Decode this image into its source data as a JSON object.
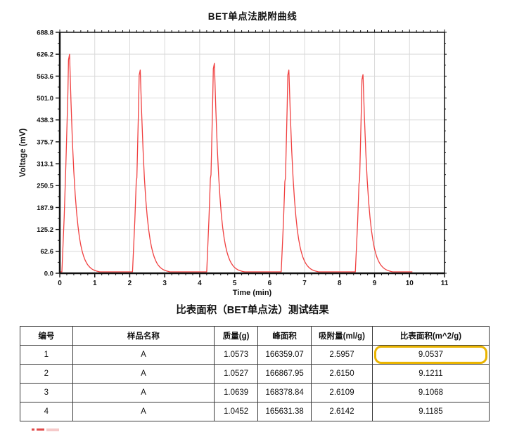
{
  "figure": {
    "title": "BET单点法脱附曲线"
  },
  "chart_data": {
    "type": "line",
    "title": "BET单点法脱附曲线",
    "xlabel": "Time (min)",
    "ylabel": "Voltage (mV)",
    "xlim": [
      0,
      11
    ],
    "ylim": [
      0,
      688.8
    ],
    "grid": true,
    "legend": "none",
    "line_color": "#f04040",
    "grid_color": "#d9d9d9",
    "axis_color": "#111111",
    "x_tick_labels": [
      "0",
      "1",
      "2",
      "3",
      "4",
      "5",
      "6",
      "7",
      "8",
      "9",
      "10",
      "11"
    ],
    "y_tick_labels": [
      "0.0",
      "62.6",
      "125.2",
      "187.9",
      "250.5",
      "313.1",
      "375.7",
      "438.3",
      "501.0",
      "563.6",
      "626.2",
      "688.8"
    ],
    "baseline_mV": 4,
    "trace_end_min": 10.08,
    "peaks": [
      {
        "rise_start": 0.06,
        "peak_time": 0.28,
        "peak_mV": 626,
        "shoulder": false
      },
      {
        "rise_start": 2.08,
        "peak_time": 2.3,
        "peak_mV": 581,
        "shoulder": true
      },
      {
        "rise_start": 4.2,
        "peak_time": 4.42,
        "peak_mV": 600,
        "shoulder": true
      },
      {
        "rise_start": 6.33,
        "peak_time": 6.55,
        "peak_mV": 581,
        "shoulder": true
      },
      {
        "rise_start": 8.45,
        "peak_time": 8.67,
        "peak_mV": 568,
        "shoulder": true
      }
    ]
  },
  "table_section": {
    "title": "比表面积（BET单点法）测试结果",
    "columns": [
      "编号",
      "样品名称",
      "质量(g)",
      "峰面积",
      "吸附量(ml/g)",
      "比表面积(m^2/g)"
    ],
    "col_widths_pct": [
      11.2,
      30.2,
      9.3,
      11.4,
      13.0,
      24.9
    ],
    "rows": [
      [
        "1",
        "A",
        "1.0573",
        "166359.07",
        "2.5957",
        "9.0537"
      ],
      [
        "2",
        "A",
        "1.0527",
        "166867.95",
        "2.6150",
        "9.1211"
      ],
      [
        "3",
        "A",
        "1.0639",
        "168378.84",
        "2.6109",
        "9.1068"
      ],
      [
        "4",
        "A",
        "1.0452",
        "165631.38",
        "2.6142",
        "9.1185"
      ]
    ],
    "highlight": {
      "row": 0,
      "col": 5,
      "color": "#eab400"
    }
  }
}
